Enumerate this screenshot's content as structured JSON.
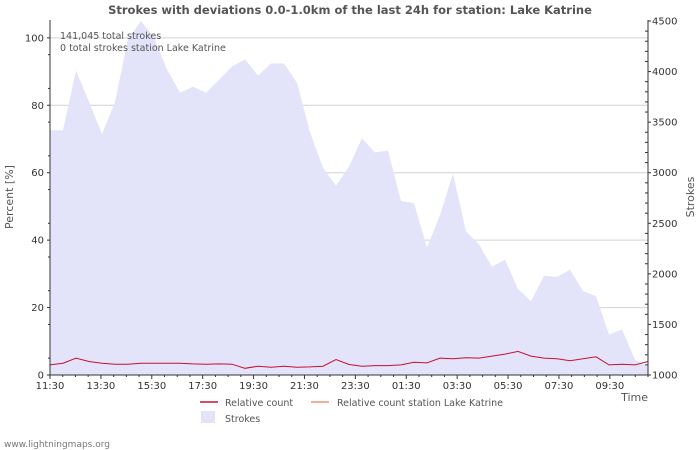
{
  "chart_data": {
    "type": "area",
    "title": "Strokes with deviations 0.0-1.0km of the last 24h for station: Lake Katrine",
    "xlabel": "Time",
    "ylabel_left": "Percent   [%]",
    "ylabel_right": "Strokes",
    "ylim_left": [
      0,
      105
    ],
    "ylim_right": [
      1000,
      4500
    ],
    "yticks_left": [
      "0",
      "20",
      "40",
      "60",
      "80",
      "100"
    ],
    "yticks_right": [
      "1000",
      "1500",
      "2000",
      "2500",
      "3000",
      "3500",
      "4000",
      "4500"
    ],
    "xticks": [
      "11:30",
      "13:30",
      "15:30",
      "17:30",
      "19:30",
      "21:30",
      "23:30",
      "01:30",
      "03:30",
      "05:30",
      "07:30",
      "09:30"
    ],
    "annotations": [
      "141,045 total strokes",
      "0 total strokes station Lake Katrine"
    ],
    "series": [
      {
        "name": "Strokes",
        "axis": "right",
        "values": [
          3420,
          3420,
          4010,
          3700,
          3380,
          3700,
          4320,
          4500,
          4340,
          4020,
          3790,
          3850,
          3790,
          3920,
          4050,
          4120,
          3960,
          4080,
          4080,
          3890,
          3400,
          3050,
          2870,
          3060,
          3340,
          3200,
          3220,
          2720,
          2700,
          2260,
          2580,
          2990,
          2420,
          2290,
          2070,
          2140,
          1850,
          1730,
          1980,
          1970,
          2040,
          1830,
          1780,
          1400,
          1450,
          1150,
          1080
        ]
      },
      {
        "name": "Relative count",
        "axis": "left",
        "values": [
          3.0,
          3.5,
          5.0,
          4.0,
          3.5,
          3.2,
          3.2,
          3.5,
          3.5,
          3.5,
          3.5,
          3.3,
          3.2,
          3.3,
          3.2,
          2.0,
          2.6,
          2.3,
          2.6,
          2.3,
          2.4,
          2.6,
          4.6,
          3.1,
          2.6,
          2.8,
          2.8,
          3.0,
          3.8,
          3.6,
          5.0,
          4.8,
          5.1,
          5.0,
          5.6,
          6.2,
          7.0,
          5.6,
          5.0,
          4.8,
          4.2,
          4.8,
          5.4,
          3.0,
          3.2,
          3.0,
          4.0
        ]
      },
      {
        "name": "Relative count station Lake Katrine",
        "axis": "left",
        "values": []
      }
    ]
  },
  "credit": "www.lightningmaps.org",
  "colors": {
    "strokes_fill": "#e3e3fa",
    "relative_line": "#c8102e",
    "station_line": "#f0947c",
    "grid": "#d2d2d2",
    "axis": "#333333"
  }
}
